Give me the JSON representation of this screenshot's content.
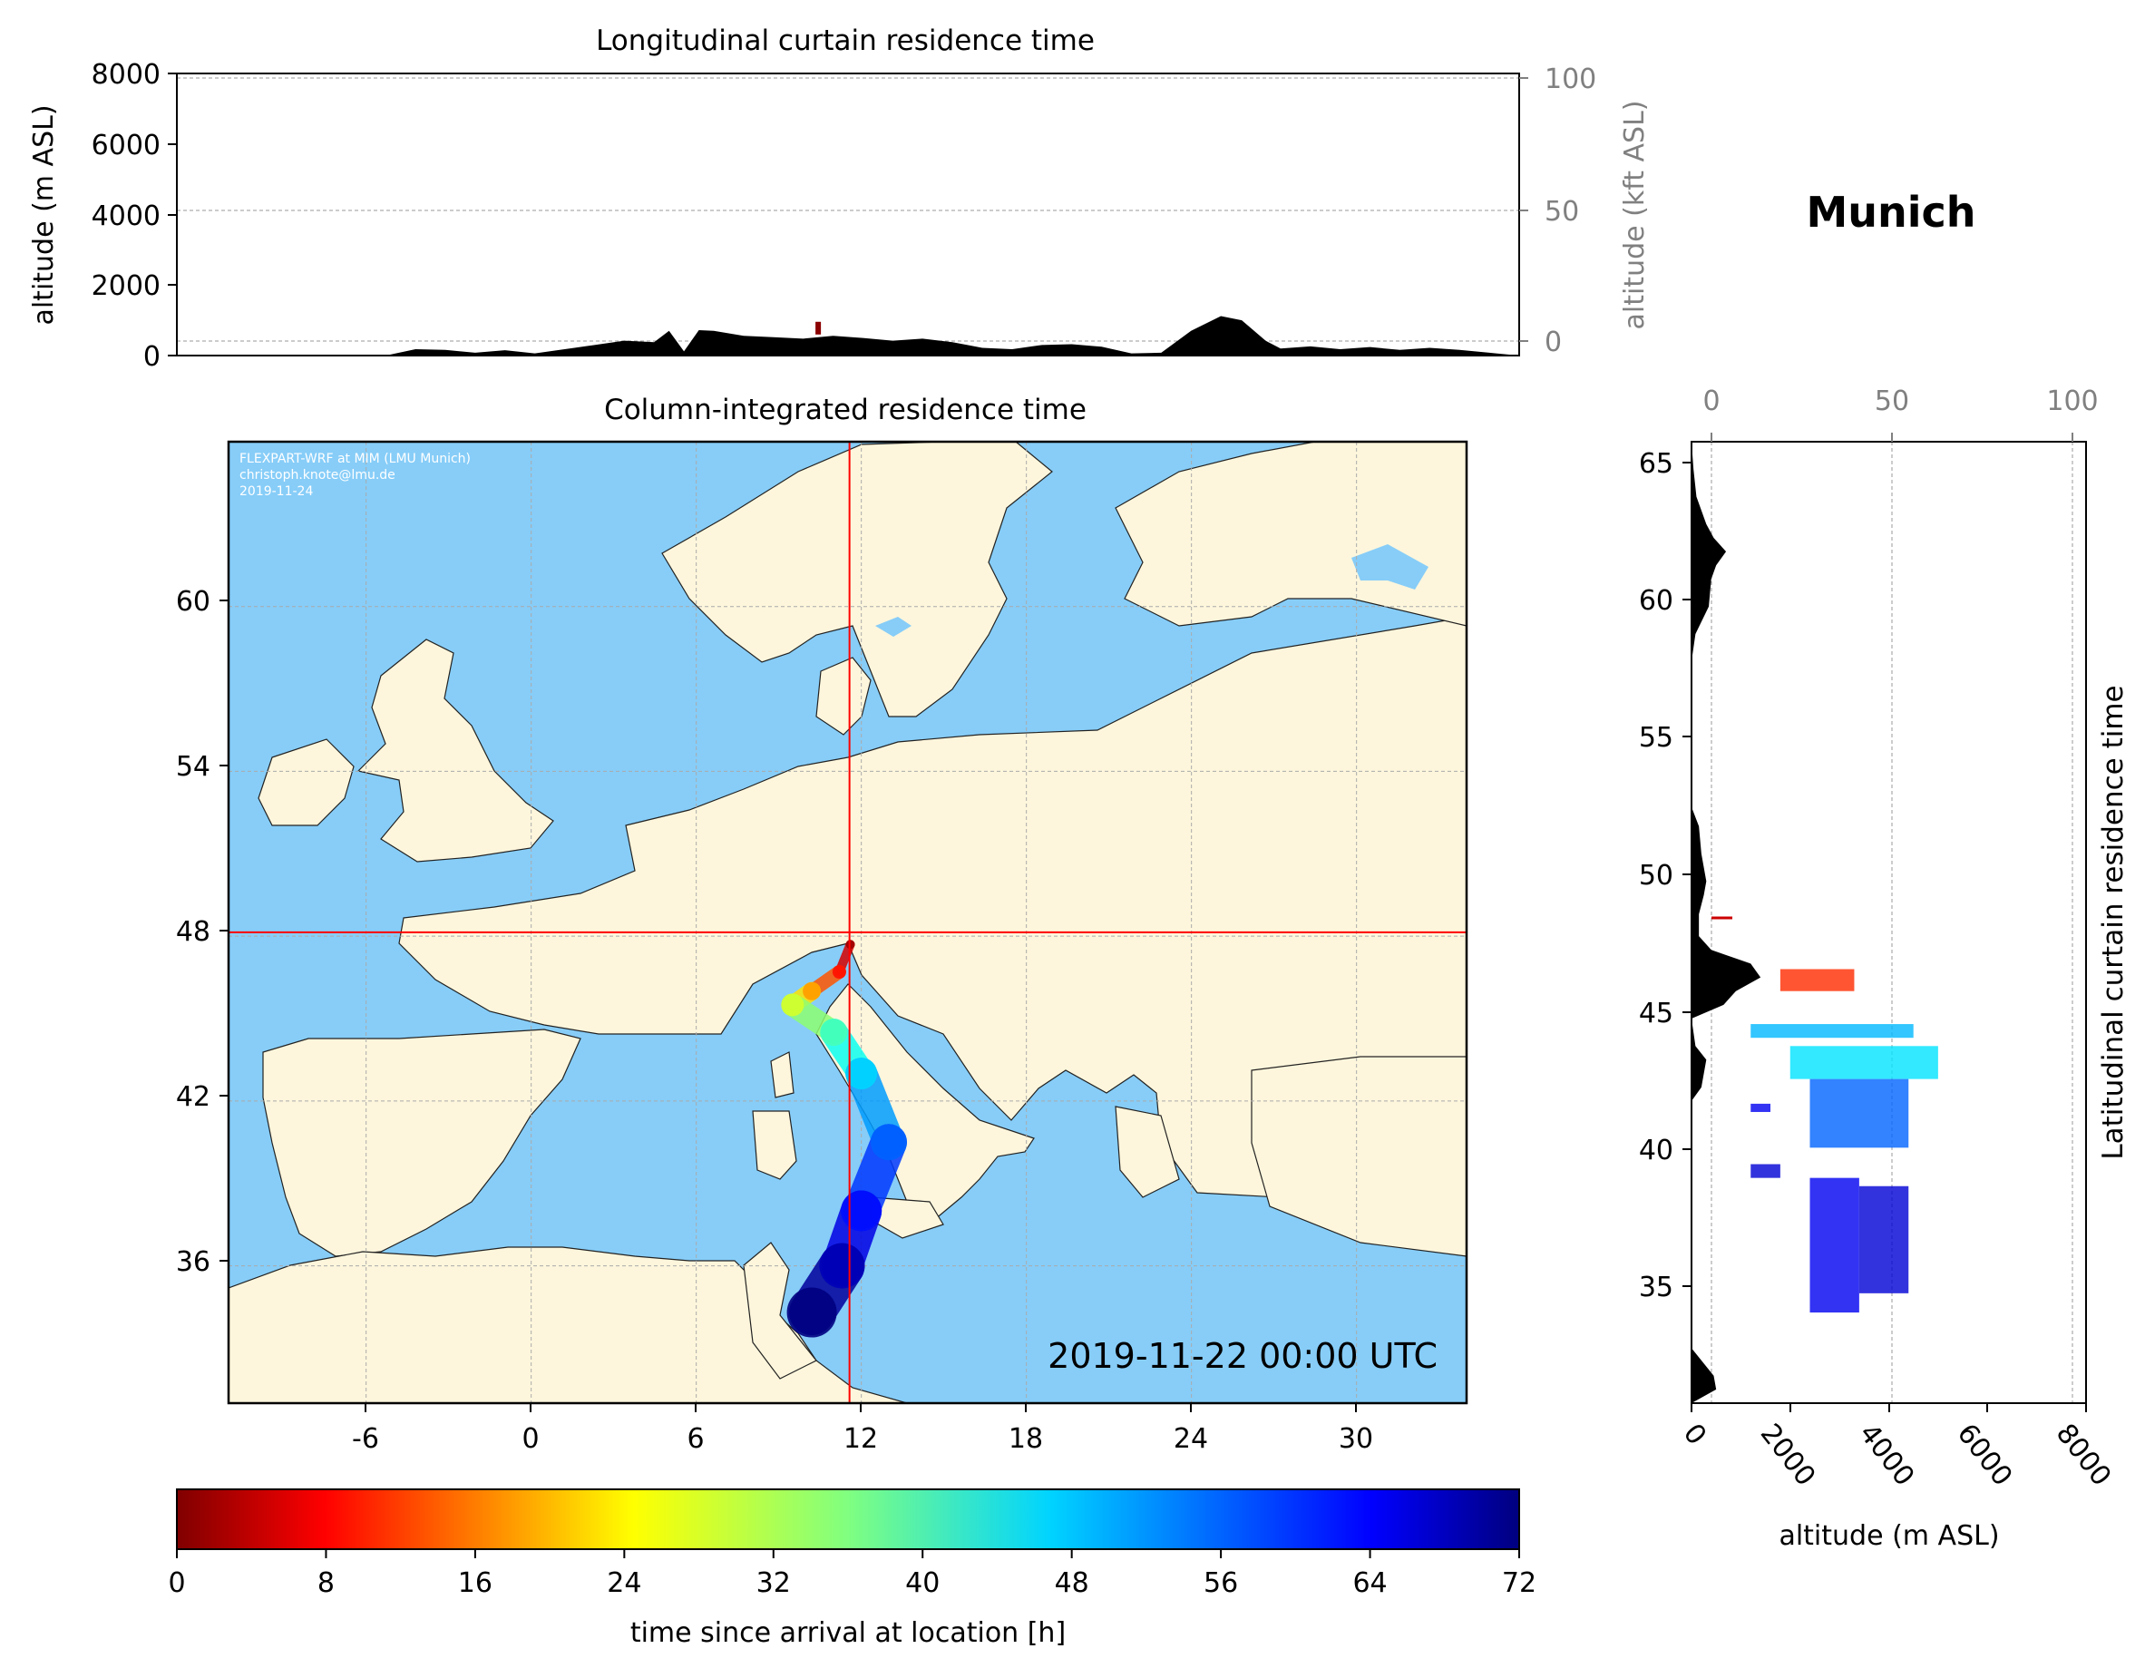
{
  "figure": {
    "title": "Munich",
    "colors": {
      "land": "#fdf6dc",
      "sea": "#87cdf8",
      "terrain": "#000000",
      "crosshair": "#ff0000",
      "secondary_axis": "#808080"
    }
  },
  "chart_data": [
    {
      "id": "longitudinal",
      "type": "area",
      "title": "Longitudinal curtain residence time",
      "ylabel": "altitude (m ASL)",
      "ylabel_right": "altitude (kft ASL)",
      "xlabel": "",
      "xlim": [
        -10,
        35
      ],
      "ylim": [
        0,
        8000
      ],
      "yticks": [
        "0",
        "2000",
        "4000",
        "6000",
        "8000"
      ],
      "yticks_right": [
        "0",
        "50",
        "100"
      ],
      "grid": true,
      "terrain_x": [
        -10,
        -3,
        -2,
        -1,
        0,
        1,
        2,
        3,
        4,
        5,
        6,
        6.5,
        7,
        7.5,
        8,
        9,
        10,
        11,
        12,
        13,
        14,
        15,
        16,
        17,
        18,
        19,
        20,
        21,
        22,
        23,
        24,
        25,
        25.7,
        26.5,
        27,
        28,
        29,
        30,
        31,
        32,
        33,
        34,
        35
      ],
      "terrain_altitude": [
        0,
        0,
        180,
        160,
        80,
        150,
        60,
        180,
        300,
        420,
        380,
        700,
        120,
        720,
        700,
        560,
        520,
        480,
        560,
        500,
        420,
        480,
        380,
        220,
        180,
        300,
        320,
        250,
        60,
        80,
        700,
        1120,
        1000,
        420,
        200,
        260,
        180,
        240,
        160,
        220,
        160,
        80,
        0
      ],
      "residence_markers": [
        {
          "x": 11.5,
          "altitude": 700,
          "color": "#8b0000"
        }
      ]
    },
    {
      "id": "column",
      "type": "heatmap",
      "title": "Column-integrated residence time",
      "xticks": [
        "-6",
        "0",
        "6",
        "12",
        "18",
        "24",
        "30"
      ],
      "yticks": [
        "36",
        "42",
        "48",
        "54",
        "60"
      ],
      "xlim": [
        -11,
        34
      ],
      "ylim": [
        31,
        66
      ],
      "grid": true,
      "receptor": {
        "lon": 11.57,
        "lat": 48.14
      },
      "credit_lines": [
        "FLEXPART-WRF at MIM (LMU Munich)",
        "christoph.knote@lmu.de",
        "2019-11-24"
      ],
      "timestamp": "2019-11-22 00:00 UTC",
      "trajectory": [
        {
          "lon": 11.6,
          "lat": 47.7,
          "hours": 2
        },
        {
          "lon": 11.2,
          "lat": 46.7,
          "hours": 10
        },
        {
          "lon": 10.2,
          "lat": 46.0,
          "hours": 20
        },
        {
          "lon": 9.5,
          "lat": 45.5,
          "hours": 30
        },
        {
          "lon": 11.0,
          "lat": 44.5,
          "hours": 40
        },
        {
          "lon": 12.0,
          "lat": 43.0,
          "hours": 48
        },
        {
          "lon": 13.0,
          "lat": 40.5,
          "hours": 56
        },
        {
          "lon": 12.0,
          "lat": 38.0,
          "hours": 62
        },
        {
          "lon": 11.3,
          "lat": 36.0,
          "hours": 68
        },
        {
          "lon": 10.2,
          "lat": 34.3,
          "hours": 72
        }
      ]
    },
    {
      "id": "latitudinal",
      "type": "area",
      "title": "Latitudinal curtain residence time",
      "xlabel": "altitude (m ASL)",
      "xlim": [
        0,
        8000
      ],
      "ylim": [
        31,
        66
      ],
      "xticks": [
        "0",
        "2000",
        "4000",
        "6000",
        "8000"
      ],
      "xticks_top": [
        "0",
        "50",
        "100"
      ],
      "yticks": [
        "35",
        "40",
        "45",
        "50",
        "55",
        "60",
        "65"
      ],
      "grid": true,
      "terrain_lat": [
        31,
        31.5,
        32,
        33,
        34,
        35,
        40,
        42,
        42.5,
        43.5,
        44,
        45,
        45.5,
        46,
        46.5,
        47,
        47.5,
        48,
        48.8,
        49.5,
        50,
        51,
        52,
        52.7,
        53,
        55,
        57,
        58,
        59,
        60,
        61,
        61.5,
        62,
        62.5,
        63,
        64,
        65,
        66
      ],
      "terrain_altitude": [
        0,
        500,
        450,
        0,
        0,
        0,
        0,
        0,
        200,
        300,
        80,
        0,
        650,
        900,
        1400,
        1200,
        400,
        150,
        150,
        250,
        300,
        200,
        150,
        0,
        0,
        0,
        0,
        0,
        80,
        350,
        400,
        500,
        700,
        450,
        300,
        100,
        40,
        0
      ],
      "residence_blocks": [
        {
          "alt0": 1800,
          "alt1": 3300,
          "lat0": 46.0,
          "lat1": 46.8,
          "hours": 12
        },
        {
          "alt0": 1200,
          "alt1": 4500,
          "lat0": 44.3,
          "lat1": 44.8,
          "hours": 50
        },
        {
          "alt0": 2000,
          "alt1": 5000,
          "lat0": 42.8,
          "lat1": 44.0,
          "hours": 47
        },
        {
          "alt0": 2400,
          "alt1": 4400,
          "lat0": 40.3,
          "lat1": 42.8,
          "hours": 56
        },
        {
          "alt0": 2400,
          "alt1": 3400,
          "lat0": 34.3,
          "lat1": 39.2,
          "hours": 64
        },
        {
          "alt0": 3400,
          "alt1": 4400,
          "lat0": 35.0,
          "lat1": 38.9,
          "hours": 66
        },
        {
          "alt0": 1200,
          "alt1": 1800,
          "lat0": 39.2,
          "lat1": 39.7,
          "hours": 66
        },
        {
          "alt0": 1200,
          "alt1": 1600,
          "lat0": 41.6,
          "lat1": 41.9,
          "hours": 64
        }
      ]
    }
  ],
  "colorbar": {
    "label": "time since arrival at location [h]",
    "min": 0,
    "max": 72,
    "ticks": [
      "0",
      "8",
      "16",
      "24",
      "32",
      "40",
      "48",
      "56",
      "64",
      "72"
    ],
    "colormap": "jet_r"
  }
}
